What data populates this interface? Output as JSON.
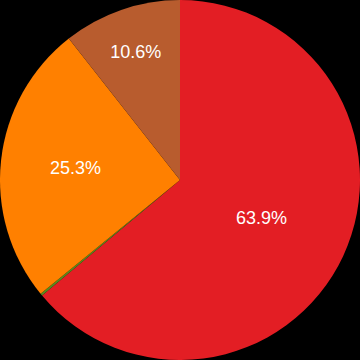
{
  "chart_data": {
    "type": "pie",
    "values": [
      63.9,
      0.2,
      25.3,
      10.6
    ],
    "value_labels": [
      "63.9%",
      null,
      "25.3%",
      "10.6%"
    ],
    "colors": [
      "#e31e24",
      "#5a8a1e",
      "#ff8000",
      "#b85c2e"
    ],
    "data_labels": true
  }
}
